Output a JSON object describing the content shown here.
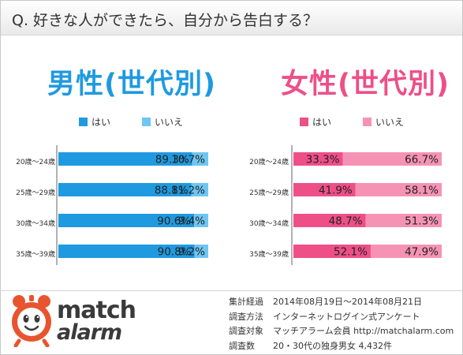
{
  "question": "Q. 好きな人ができたら、自分から告白する？",
  "chart_data": [
    {
      "type": "bar",
      "stacked": true,
      "orientation": "horizontal",
      "title": "男性(世代別)",
      "categories": [
        "20歳〜24歳",
        "25歳〜29歳",
        "30歳〜34歳",
        "35歳〜39歳"
      ],
      "series": [
        {
          "name": "はい",
          "values": [
            89.3,
            88.8,
            90.6,
            90.8
          ],
          "color": "#1f9ae0"
        },
        {
          "name": "いいえ",
          "values": [
            10.7,
            11.2,
            9.4,
            9.2
          ],
          "color": "#6ec6f2"
        }
      ],
      "labels": [
        [
          "89.3%",
          "88.8%",
          "90.6%",
          "90.8%"
        ],
        [
          "10.7%",
          "11.2%",
          "9.4%",
          "9.2%"
        ]
      ],
      "xlim": [
        0,
        100
      ],
      "legend": "top",
      "grid": false
    },
    {
      "type": "bar",
      "stacked": true,
      "orientation": "horizontal",
      "title": "女性(世代別)",
      "categories": [
        "20歳〜24歳",
        "25歳〜29歳",
        "30歳〜34歳",
        "35歳〜39歳"
      ],
      "series": [
        {
          "name": "はい",
          "values": [
            33.3,
            41.9,
            48.7,
            52.1
          ],
          "color": "#ee4f87"
        },
        {
          "name": "いいえ",
          "values": [
            66.7,
            58.1,
            51.3,
            47.9
          ],
          "color": "#f693b5"
        }
      ],
      "labels": [
        [
          "33.3%",
          "41.9%",
          "48.7%",
          "52.1%"
        ],
        [
          "66.7%",
          "58.1%",
          "51.3%",
          "47.9%"
        ]
      ],
      "xlim": [
        0,
        100
      ],
      "legend": "top",
      "grid": false
    }
  ],
  "logo": {
    "line1": "match",
    "line2": "alarm",
    "icon": "alarm-clock-icon",
    "color": "#e8542e"
  },
  "survey": [
    {
      "key": "集計経過",
      "value": "2014年08月19日〜2014年08月21日"
    },
    {
      "key": "調査方法",
      "value": "インターネットログイン式アンケート"
    },
    {
      "key": "調査対象",
      "value": "マッチアラーム会員 http://matchalarm.com"
    },
    {
      "key": "調査数",
      "value": "20・30代の独身男女 4,432件"
    }
  ]
}
